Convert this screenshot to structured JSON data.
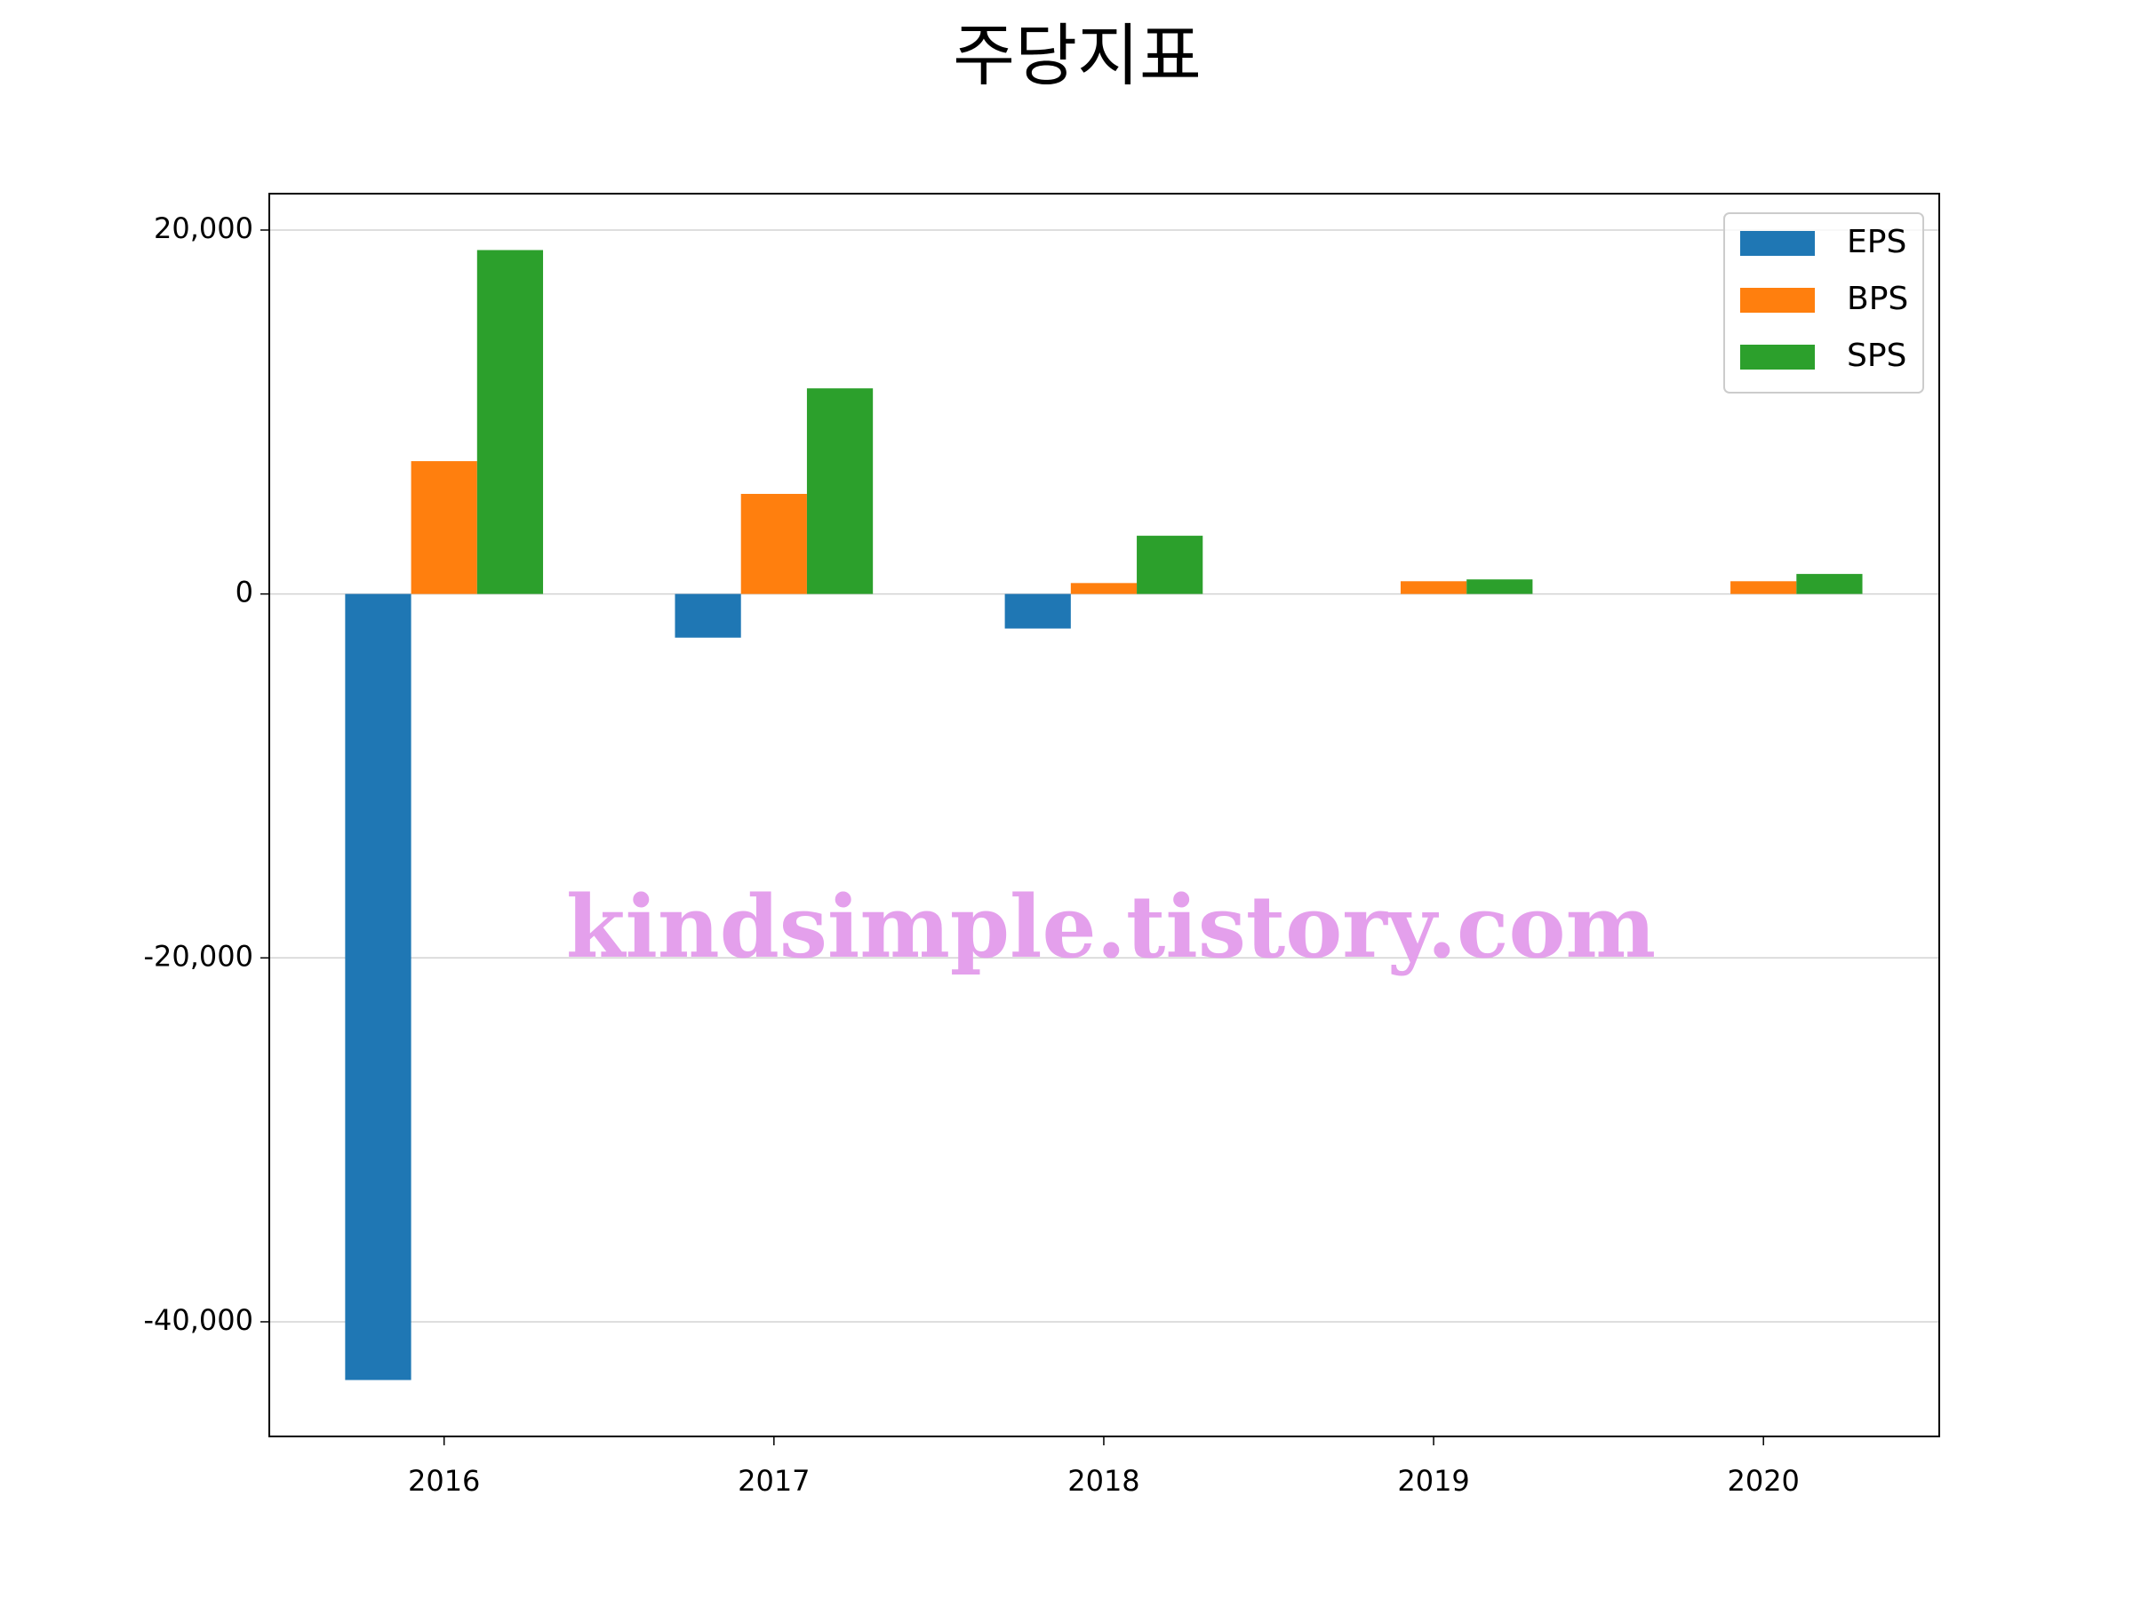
{
  "chart_data": {
    "type": "bar",
    "title": "주당지표",
    "categories": [
      "2016",
      "2017",
      "2018",
      "2019",
      "2020"
    ],
    "series": [
      {
        "name": "EPS",
        "color": "#1f77b4",
        "values": [
          -43200,
          -2400,
          -1900,
          0,
          0
        ]
      },
      {
        "name": "BPS",
        "color": "#ff7f0e",
        "values": [
          7300,
          5500,
          600,
          700,
          700
        ]
      },
      {
        "name": "SPS",
        "color": "#2ca02c",
        "values": [
          18900,
          11300,
          3200,
          800,
          1100
        ]
      }
    ],
    "ylim": [
      -46300,
      22000
    ],
    "yticks": [
      {
        "value": -40000,
        "label": "-40,000"
      },
      {
        "value": -20000,
        "label": "-20,000"
      },
      0,
      {
        "value": 20000,
        "label": "20,000"
      }
    ],
    "grid": true,
    "legend": "upper right",
    "watermark": "kindsimple.tistory.com"
  }
}
